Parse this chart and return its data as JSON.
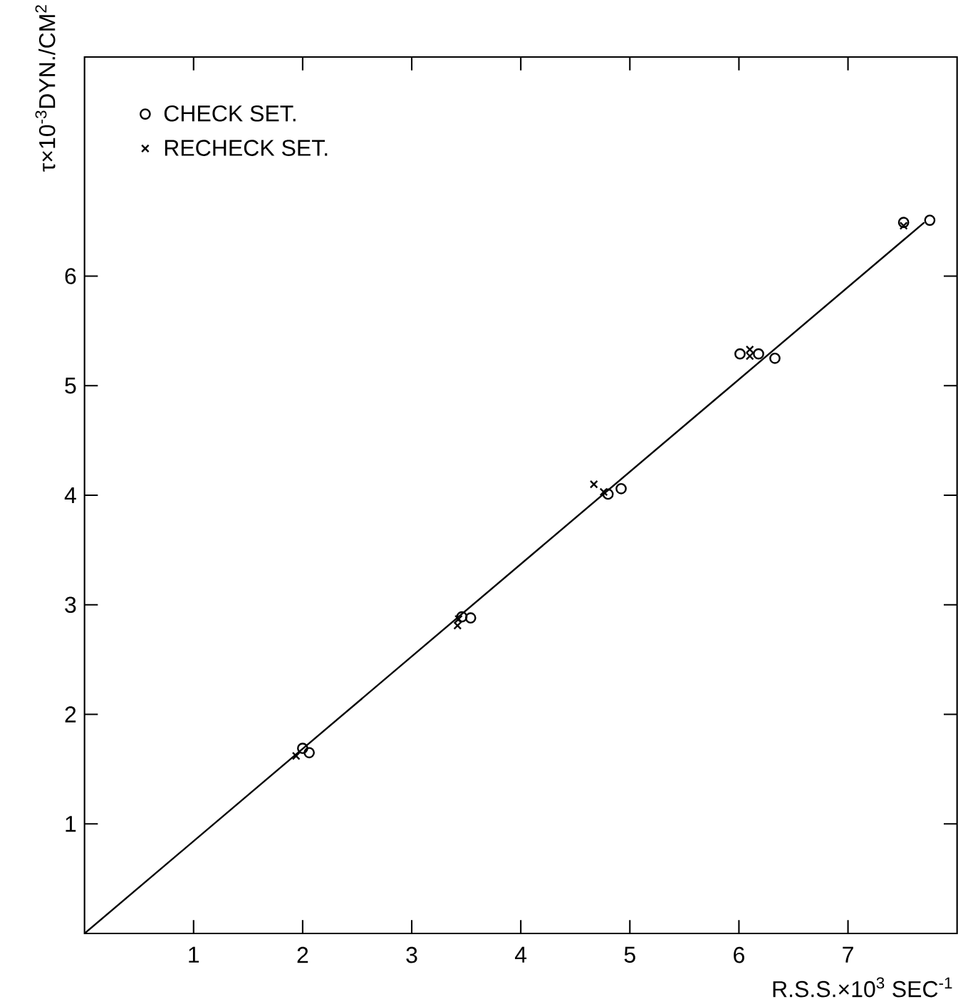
{
  "chart_data": {
    "type": "scatter",
    "xlabel": "R.S.S.×10$^{3}$ SEC$^{-1}$",
    "ylabel": "τ×10$^{-3}$DYN./CM$^{2}$",
    "xlim": [
      0,
      8
    ],
    "ylim": [
      0,
      8
    ],
    "xticks": [
      1,
      2,
      3,
      4,
      5,
      6,
      7
    ],
    "yticks": [
      1,
      2,
      3,
      4,
      5,
      6
    ],
    "grid": false,
    "legend": "top left",
    "series": [
      {
        "name": "CHECK SET.",
        "color": "#000000",
        "marker": "circle",
        "x": [
          2.0,
          2.06,
          3.46,
          3.54,
          4.8,
          4.92,
          6.01,
          6.18,
          6.33,
          7.51,
          7.75
        ],
        "values": [
          1.69,
          1.65,
          2.89,
          2.88,
          4.01,
          4.06,
          5.29,
          5.29,
          5.25,
          6.49,
          6.51
        ]
      },
      {
        "name": "RECHECK SET.",
        "color": "#000000",
        "marker": "cross",
        "x": [
          1.94,
          3.43,
          3.42,
          4.67,
          4.76,
          6.1,
          6.1,
          7.51
        ],
        "values": [
          1.62,
          2.87,
          2.81,
          4.1,
          4.03,
          5.33,
          5.27,
          6.46
        ]
      },
      {
        "type": "line",
        "color": "#000000",
        "marker": "none",
        "line_style": "solid",
        "x": [
          0,
          7.7
        ],
        "values": [
          0,
          6.49
        ]
      }
    ]
  }
}
